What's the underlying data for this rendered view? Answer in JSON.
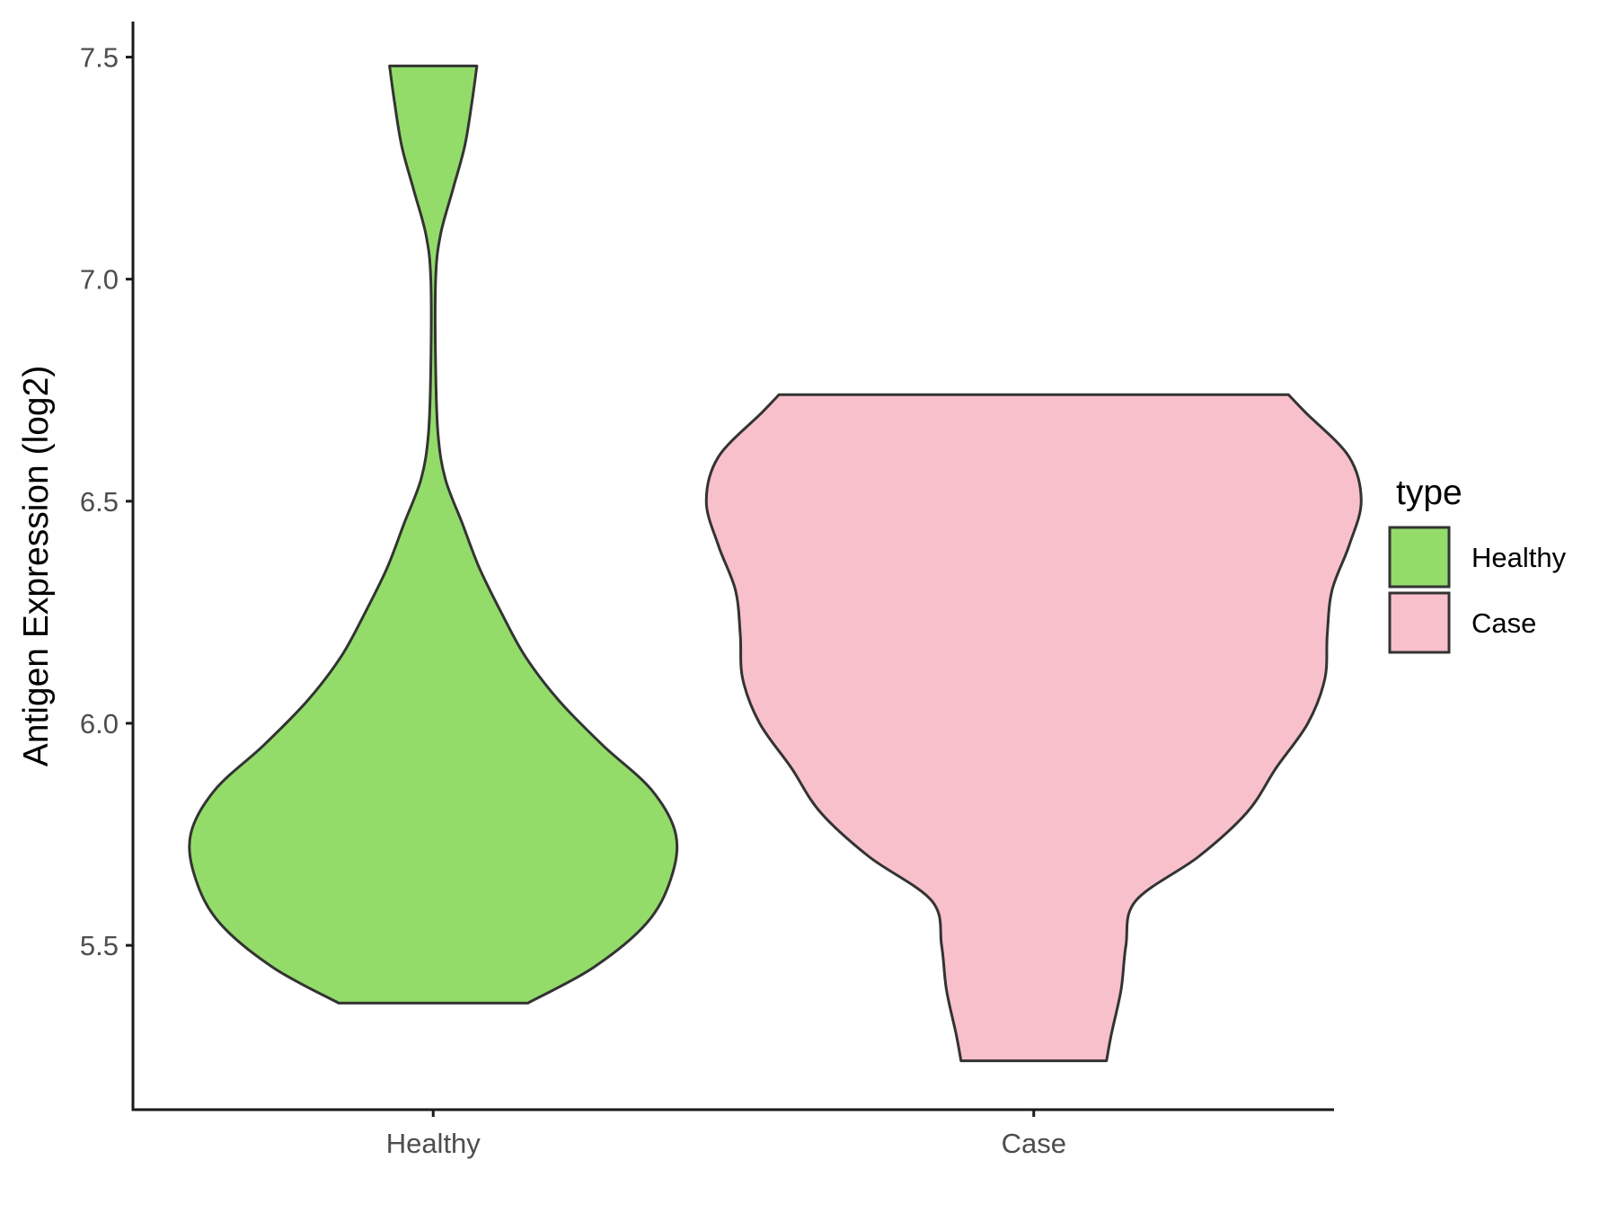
{
  "chart_data": {
    "type": "violin",
    "ylabel": "Antigen Expression (log2)",
    "xlabel": "",
    "categories": [
      "Healthy",
      "Case"
    ],
    "ylim": [
      5.13,
      7.58
    ],
    "yticks": [
      "5.5",
      "6.0",
      "6.5",
      "7.0",
      "7.5"
    ],
    "grid": false,
    "legend": {
      "title": "type",
      "position": "right",
      "entries": [
        {
          "label": "Healthy",
          "color": "#93DC6A"
        },
        {
          "label": "Case",
          "color": "#F8C0CB"
        }
      ]
    },
    "series": [
      {
        "category": "Healthy",
        "color": "#93DC6A",
        "y_min": 5.37,
        "y_max": 7.48,
        "profile": [
          [
            5.37,
            0.39
          ],
          [
            5.45,
            0.66
          ],
          [
            5.55,
            0.88
          ],
          [
            5.65,
            0.98
          ],
          [
            5.75,
            1.0
          ],
          [
            5.85,
            0.9
          ],
          [
            5.95,
            0.7
          ],
          [
            6.05,
            0.52
          ],
          [
            6.15,
            0.38
          ],
          [
            6.25,
            0.28
          ],
          [
            6.35,
            0.19
          ],
          [
            6.45,
            0.12
          ],
          [
            6.55,
            0.05
          ],
          [
            6.65,
            0.02
          ],
          [
            6.8,
            0.01
          ],
          [
            7.0,
            0.01
          ],
          [
            7.1,
            0.03
          ],
          [
            7.2,
            0.08
          ],
          [
            7.3,
            0.13
          ],
          [
            7.4,
            0.16
          ],
          [
            7.48,
            0.18
          ]
        ]
      },
      {
        "category": "Case",
        "color": "#F8C0CB",
        "y_min": 5.24,
        "y_max": 6.74,
        "profile": [
          [
            5.24,
            0.3
          ],
          [
            5.3,
            0.32
          ],
          [
            5.4,
            0.36
          ],
          [
            5.5,
            0.38
          ],
          [
            5.6,
            0.42
          ],
          [
            5.7,
            0.68
          ],
          [
            5.8,
            0.88
          ],
          [
            5.9,
            1.0
          ],
          [
            6.0,
            1.13
          ],
          [
            6.1,
            1.2
          ],
          [
            6.2,
            1.21
          ],
          [
            6.3,
            1.23
          ],
          [
            6.4,
            1.3
          ],
          [
            6.5,
            1.35
          ],
          [
            6.6,
            1.3
          ],
          [
            6.7,
            1.12
          ],
          [
            6.74,
            1.05
          ]
        ]
      }
    ]
  }
}
